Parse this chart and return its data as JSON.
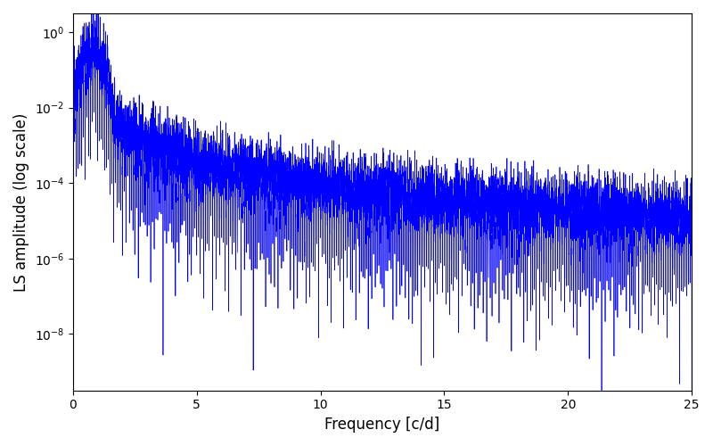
{
  "title": "",
  "xlabel": "Frequency [c/d]",
  "ylabel": "LS amplitude (log scale)",
  "xlim": [
    0,
    25
  ],
  "ylim_log_min": -9.5,
  "ylim_log_max": 0.5,
  "yscale": "log",
  "line_color": "blue",
  "line_width": 0.5,
  "background_color": "#ffffff",
  "freq_max": 25.0,
  "n_points": 10000,
  "seed": 12345,
  "peak_freq": 0.8,
  "peak_amplitude": 0.7,
  "figsize": [
    8.0,
    5.0
  ],
  "dpi": 100,
  "yticks": [
    1e-08,
    1e-06,
    0.0001,
    0.01,
    1.0
  ],
  "xticks": [
    0,
    5,
    10,
    15,
    20,
    25
  ]
}
